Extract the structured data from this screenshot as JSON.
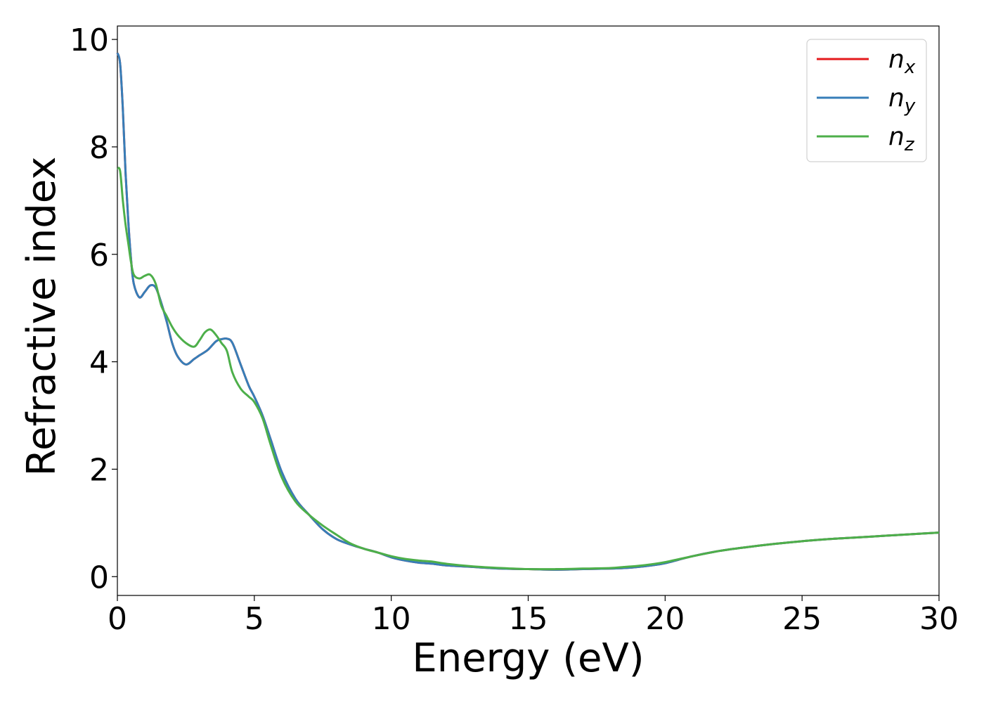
{
  "chart_data": {
    "type": "line",
    "title": "",
    "xlabel": "Energy (eV)",
    "ylabel": "Refractive index",
    "xlim": [
      0,
      30
    ],
    "ylim": [
      -0.35,
      10.25
    ],
    "xticks": [
      0,
      5,
      10,
      15,
      20,
      25,
      30
    ],
    "yticks": [
      0,
      2,
      4,
      6,
      8,
      10
    ],
    "xtick_labels": [
      "0",
      "5",
      "10",
      "15",
      "20",
      "25",
      "30"
    ],
    "ytick_labels": [
      "0",
      "2",
      "4",
      "6",
      "8",
      "10"
    ],
    "grid": false,
    "legend_position": "top-right",
    "series": [
      {
        "name": "n_x",
        "label_main": "n",
        "label_sub": "x",
        "color": "#e41a1c",
        "x": [
          0,
          0.1,
          0.2,
          0.3,
          0.4,
          0.5,
          0.6,
          0.8,
          1.0,
          1.2,
          1.4,
          1.6,
          1.8,
          2.0,
          2.2,
          2.5,
          2.8,
          3.0,
          3.3,
          3.6,
          3.8,
          4.0,
          4.2,
          4.5,
          4.8,
          5.0,
          5.3,
          5.6,
          6.0,
          6.5,
          7.0,
          7.5,
          8.0,
          8.5,
          9.0,
          9.5,
          10.0,
          10.5,
          11.0,
          11.5,
          12.0,
          13.0,
          14.0,
          15.0,
          16.0,
          17.0,
          18.0,
          18.5,
          19.0,
          19.5,
          20.0,
          21.0,
          22.0,
          23.0,
          24.0,
          25.0,
          26.0,
          27.0,
          28.0,
          29.0,
          30.0
        ],
        "values": [
          9.75,
          9.55,
          8.7,
          7.5,
          6.6,
          5.9,
          5.45,
          5.2,
          5.3,
          5.42,
          5.38,
          5.1,
          4.75,
          4.35,
          4.1,
          3.95,
          4.05,
          4.12,
          4.22,
          4.38,
          4.42,
          4.43,
          4.35,
          3.95,
          3.55,
          3.35,
          3.0,
          2.55,
          1.95,
          1.45,
          1.15,
          0.88,
          0.7,
          0.6,
          0.52,
          0.45,
          0.36,
          0.3,
          0.26,
          0.24,
          0.21,
          0.18,
          0.15,
          0.14,
          0.13,
          0.14,
          0.15,
          0.16,
          0.18,
          0.21,
          0.25,
          0.38,
          0.48,
          0.55,
          0.61,
          0.66,
          0.7,
          0.73,
          0.76,
          0.79,
          0.82
        ]
      },
      {
        "name": "n_y",
        "label_main": "n",
        "label_sub": "y",
        "color": "#377eb8",
        "x": [
          0,
          0.1,
          0.2,
          0.3,
          0.4,
          0.5,
          0.6,
          0.8,
          1.0,
          1.2,
          1.4,
          1.6,
          1.8,
          2.0,
          2.2,
          2.5,
          2.8,
          3.0,
          3.3,
          3.6,
          3.8,
          4.0,
          4.2,
          4.5,
          4.8,
          5.0,
          5.3,
          5.6,
          6.0,
          6.5,
          7.0,
          7.5,
          8.0,
          8.5,
          9.0,
          9.5,
          10.0,
          10.5,
          11.0,
          11.5,
          12.0,
          13.0,
          14.0,
          15.0,
          16.0,
          17.0,
          18.0,
          18.5,
          19.0,
          19.5,
          20.0,
          21.0,
          22.0,
          23.0,
          24.0,
          25.0,
          26.0,
          27.0,
          28.0,
          29.0,
          30.0
        ],
        "values": [
          9.75,
          9.55,
          8.7,
          7.5,
          6.6,
          5.9,
          5.45,
          5.2,
          5.3,
          5.42,
          5.38,
          5.1,
          4.75,
          4.35,
          4.1,
          3.95,
          4.05,
          4.12,
          4.22,
          4.38,
          4.42,
          4.43,
          4.35,
          3.95,
          3.55,
          3.35,
          3.0,
          2.55,
          1.95,
          1.45,
          1.15,
          0.88,
          0.7,
          0.6,
          0.52,
          0.45,
          0.36,
          0.3,
          0.26,
          0.24,
          0.21,
          0.18,
          0.15,
          0.14,
          0.13,
          0.14,
          0.15,
          0.16,
          0.18,
          0.21,
          0.25,
          0.38,
          0.48,
          0.55,
          0.61,
          0.66,
          0.7,
          0.73,
          0.76,
          0.79,
          0.82
        ]
      },
      {
        "name": "n_z",
        "label_main": "n",
        "label_sub": "z",
        "color": "#4daf4a",
        "x": [
          0,
          0.1,
          0.2,
          0.3,
          0.4,
          0.5,
          0.6,
          0.8,
          1.0,
          1.2,
          1.4,
          1.6,
          1.8,
          2.0,
          2.2,
          2.5,
          2.8,
          3.0,
          3.2,
          3.4,
          3.6,
          3.8,
          4.0,
          4.2,
          4.5,
          4.8,
          5.0,
          5.3,
          5.6,
          6.0,
          6.5,
          7.0,
          7.5,
          8.0,
          8.5,
          9.0,
          9.5,
          10.0,
          10.5,
          11.0,
          11.5,
          12.0,
          13.0,
          14.0,
          15.0,
          16.0,
          17.0,
          18.0,
          18.5,
          19.0,
          19.5,
          20.0,
          21.0,
          22.0,
          23.0,
          24.0,
          25.0,
          26.0,
          27.0,
          28.0,
          29.0,
          30.0
        ],
        "values": [
          7.6,
          7.55,
          7.0,
          6.55,
          6.2,
          5.85,
          5.62,
          5.55,
          5.6,
          5.62,
          5.45,
          5.05,
          4.85,
          4.65,
          4.5,
          4.35,
          4.28,
          4.4,
          4.55,
          4.6,
          4.5,
          4.35,
          4.2,
          3.8,
          3.5,
          3.35,
          3.25,
          2.95,
          2.45,
          1.85,
          1.4,
          1.15,
          0.95,
          0.78,
          0.62,
          0.52,
          0.45,
          0.38,
          0.33,
          0.3,
          0.28,
          0.24,
          0.19,
          0.16,
          0.14,
          0.14,
          0.15,
          0.16,
          0.18,
          0.2,
          0.23,
          0.27,
          0.38,
          0.48,
          0.55,
          0.61,
          0.66,
          0.7,
          0.73,
          0.76,
          0.79,
          0.82
        ]
      }
    ]
  }
}
